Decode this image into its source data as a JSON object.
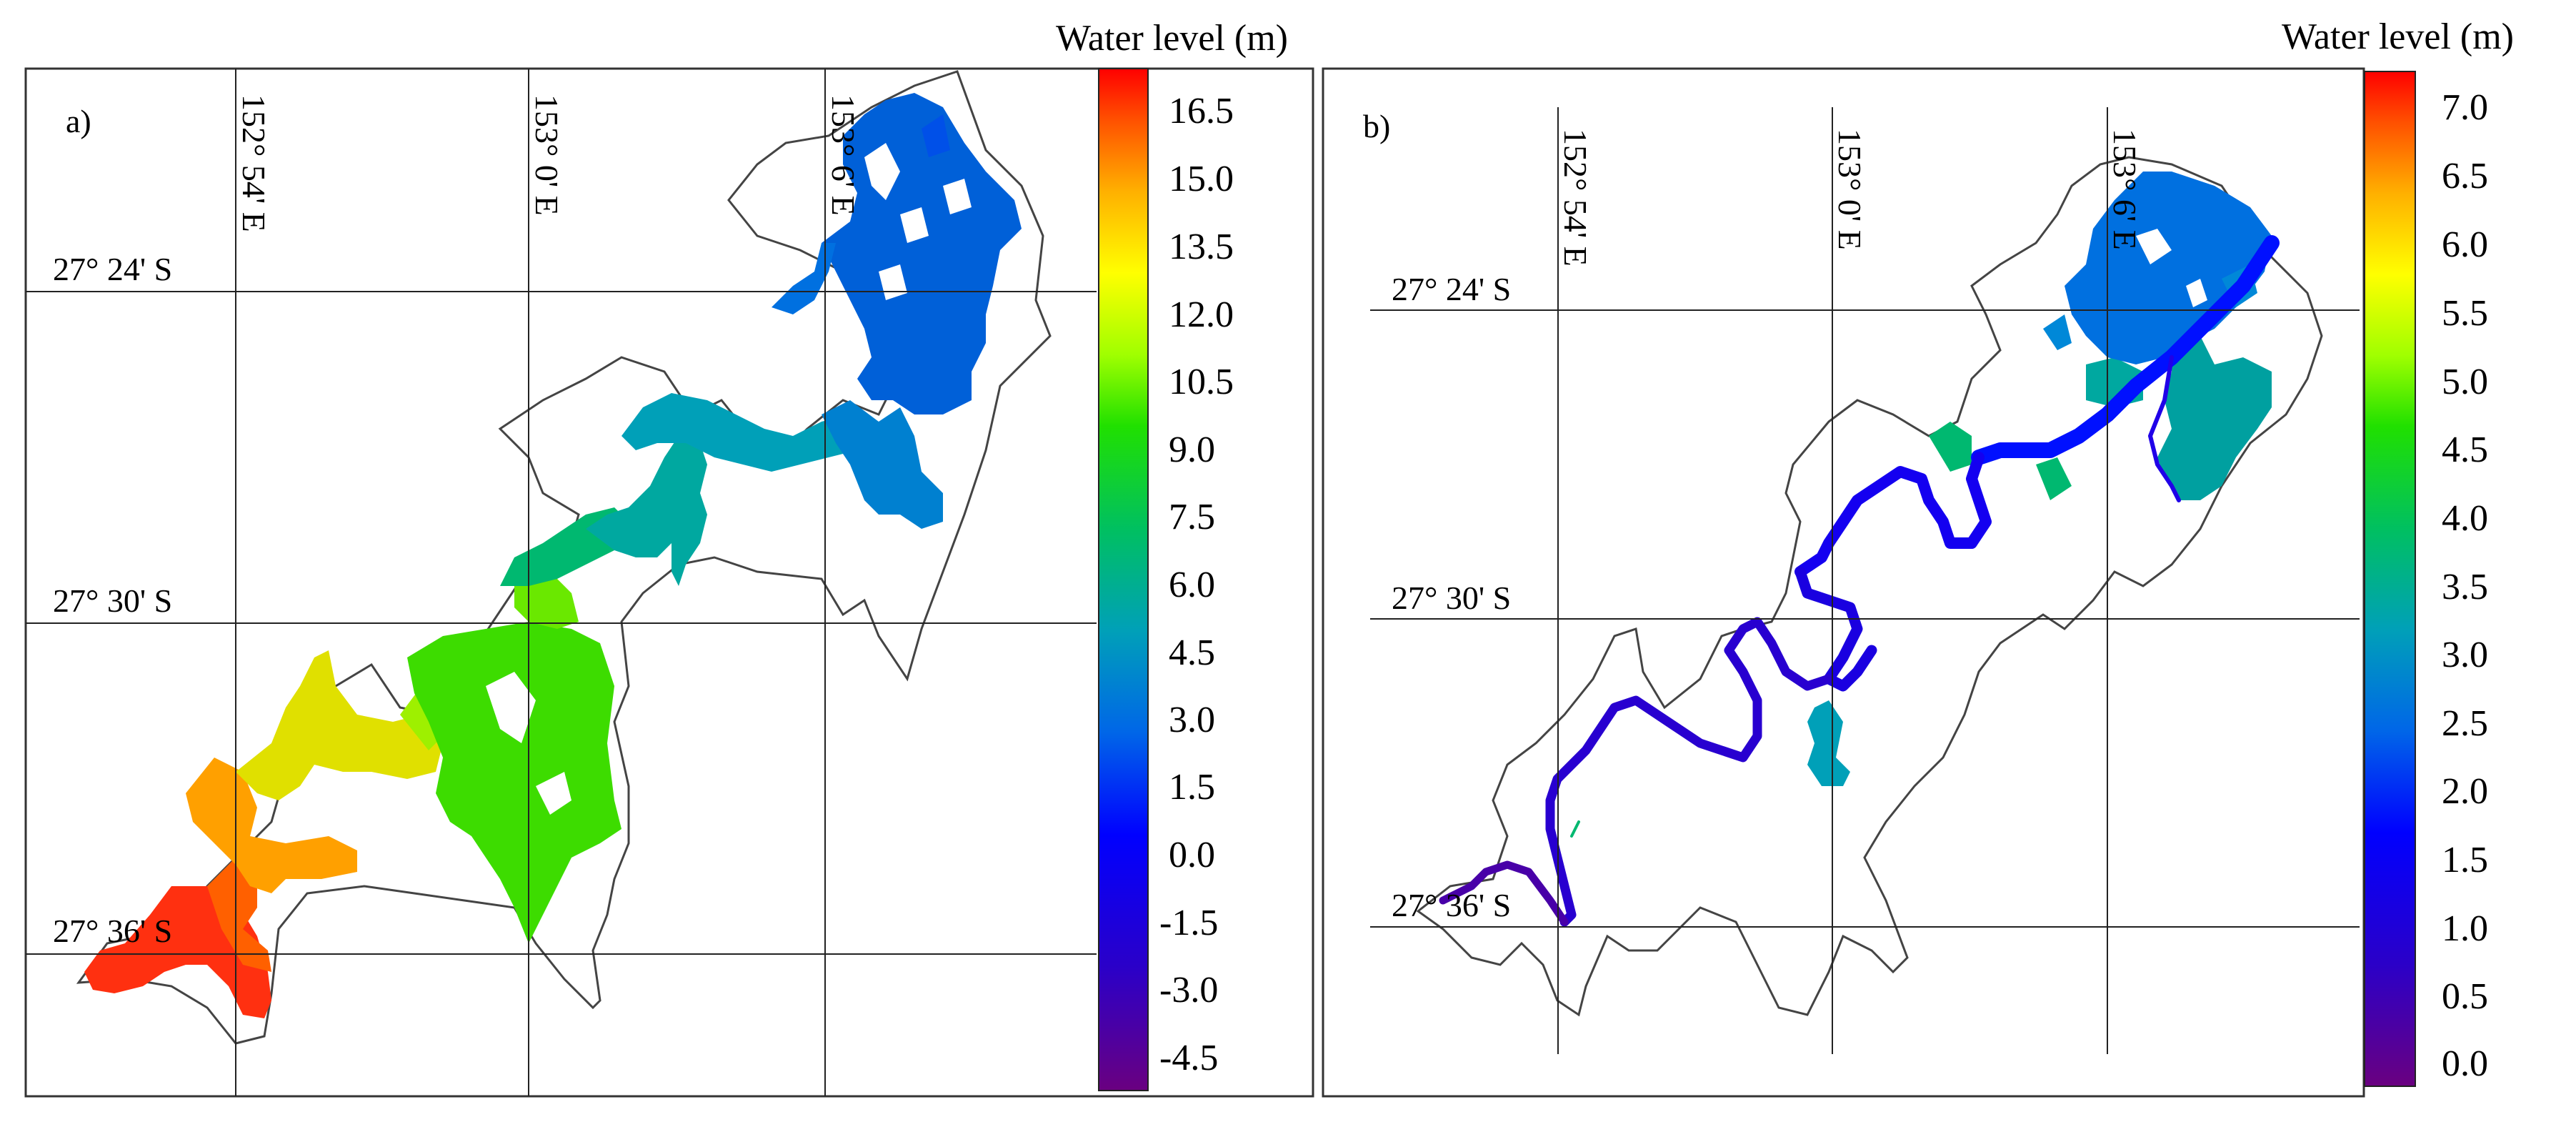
{
  "panels": [
    {
      "id": "a",
      "label": "a)",
      "colorbar_title": "Water level (m)",
      "colorbar_ticks": [
        "16.5",
        "15.0",
        "13.5",
        "12.0",
        "10.5",
        "9.0",
        "7.5",
        "6.0",
        "4.5",
        "3.0",
        "1.5",
        "0.0",
        "-1.5",
        "-3.0",
        "-4.5"
      ],
      "lon_labels": [
        "152° 54' E",
        "153° 0' E",
        "153° 6' E"
      ],
      "lat_labels": [
        "27° 24' S",
        "27° 30' S",
        "27° 36' S"
      ]
    },
    {
      "id": "b",
      "label": "b)",
      "colorbar_title": "Water level (m)",
      "colorbar_ticks": [
        "7.0",
        "6.5",
        "6.0",
        "5.5",
        "5.0",
        "4.5",
        "4.0",
        "3.5",
        "3.0",
        "2.5",
        "2.0",
        "1.5",
        "1.0",
        "0.5",
        "0.0"
      ],
      "lon_labels": [
        "152° 54' E",
        "153° 0' E",
        "153° 6' E"
      ],
      "lat_labels": [
        "27° 24' S",
        "27° 30' S",
        "27° 36' S"
      ]
    }
  ],
  "colormap": [
    "#6a0080",
    "#2b00c8",
    "#0000ff",
    "#0066e8",
    "#00a0b8",
    "#00c060",
    "#20e000",
    "#a0ff00",
    "#ffff00",
    "#ffb000",
    "#ff5000",
    "#ff0000"
  ]
}
